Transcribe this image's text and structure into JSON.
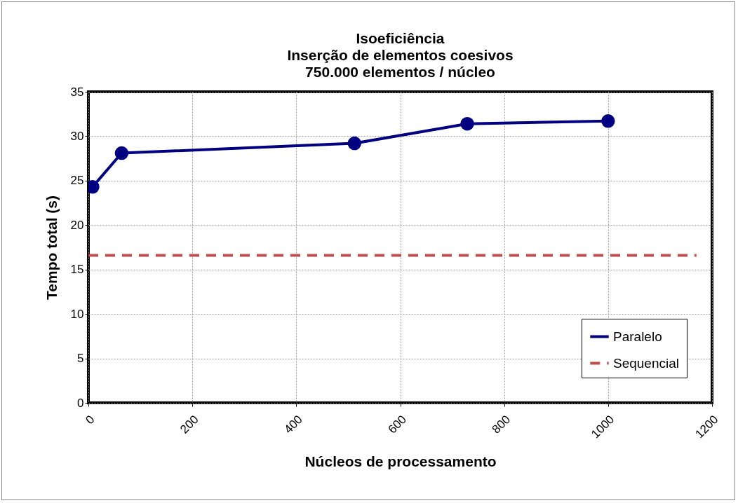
{
  "chart_data": {
    "type": "line",
    "title": "Isoeficiência\nInserção de elementos coesivos\n750.000 elementos / núcleo",
    "xlabel": "Núcleos de processamento",
    "ylabel": "Tempo total (s)",
    "series": [
      {
        "name": "Paralelo",
        "color": "#000080",
        "x": [
          8,
          64,
          512,
          729,
          1000
        ],
        "values": [
          24.3,
          28.1,
          29.2,
          31.4,
          31.7
        ],
        "marker": "circle",
        "line_style": "solid"
      },
      {
        "name": "Sequencial",
        "color": "#c0504d",
        "x": [
          0,
          1170
        ],
        "values": [
          16.6,
          16.6
        ],
        "marker": "none",
        "line_style": "dashed"
      }
    ],
    "xlim": [
      0,
      1200
    ],
    "xticks": [
      0,
      200,
      400,
      600,
      800,
      1000,
      1200
    ],
    "ylim": [
      0,
      35
    ],
    "yticks": [
      0,
      5,
      10,
      15,
      20,
      25,
      30,
      35
    ],
    "grid": true,
    "legend": "bottom right"
  }
}
